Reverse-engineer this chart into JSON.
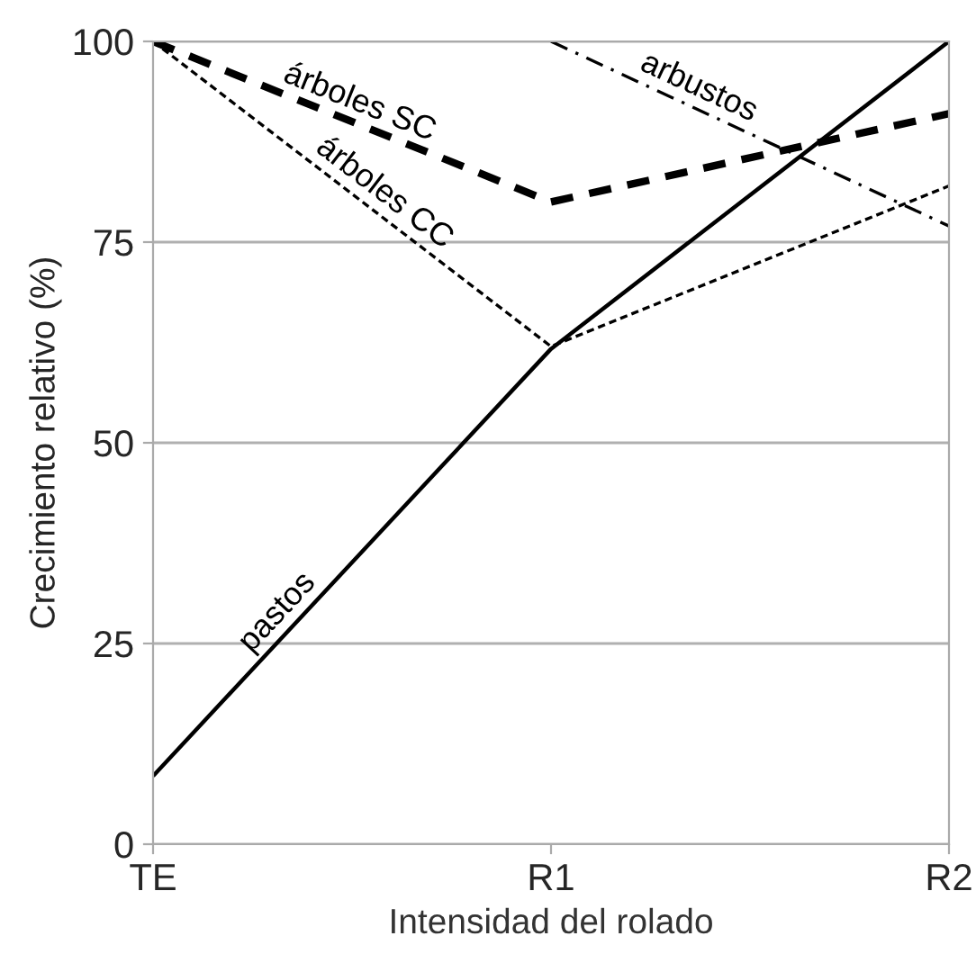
{
  "chart_data": {
    "type": "line",
    "xlabel": "Intensidad del rolado",
    "ylabel": "Crecimiento relativo (%)",
    "categories": [
      "TE",
      "R1",
      "R2"
    ],
    "ylim": [
      0,
      100
    ],
    "yticks": [
      0,
      25,
      50,
      75,
      100
    ],
    "grid": "y",
    "legend": false,
    "marker": "none",
    "series": [
      {
        "name": "pastos",
        "color": "#000000",
        "line_style": "solid",
        "values": [
          8.5,
          61.7,
          100
        ]
      },
      {
        "name": "árboles SC",
        "color": "#000000",
        "line_style": "dashed",
        "values": [
          100,
          80,
          91
        ]
      },
      {
        "name": "árboles CC",
        "color": "#000000",
        "line_style": "dotted",
        "values": [
          100,
          62,
          82
        ]
      },
      {
        "name": "arbustos",
        "color": "#000000",
        "line_style": "dashdot",
        "values": [
          null,
          100,
          77
        ]
      }
    ]
  }
}
